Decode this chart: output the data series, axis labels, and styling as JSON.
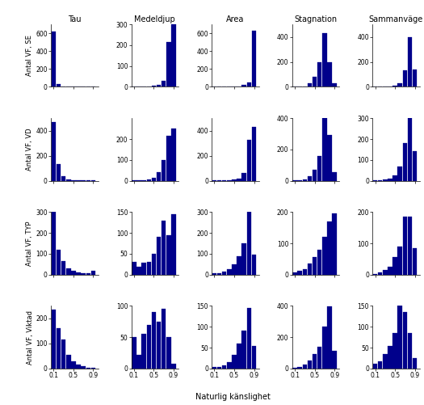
{
  "col_titles": [
    "Tau",
    "Medeldjup",
    "Area",
    "Stagnation",
    "Sammanväge"
  ],
  "row_labels": [
    "Antal VF, SE",
    "Antal VF, VD",
    "Antal VF, TYP",
    "Antal VF, Viktad"
  ],
  "bar_color": "#00008B",
  "xlabel": "Naturlig känslighet",
  "bin_centers": [
    0.1,
    0.2,
    0.3,
    0.4,
    0.5,
    0.6,
    0.7,
    0.8,
    0.9
  ],
  "bar_width": 0.09,
  "data": {
    "row0": {
      "Tau": [
        620,
        30,
        5,
        3,
        2,
        1,
        1,
        1,
        2
      ],
      "Medeldjup": [
        1,
        1,
        2,
        3,
        5,
        10,
        30,
        215,
        300
      ],
      "Area": [
        1,
        1,
        1,
        2,
        3,
        5,
        20,
        50,
        630
      ],
      "Stagnation": [
        2,
        2,
        3,
        30,
        80,
        200,
        430,
        200,
        30
      ],
      "Sammanvage": [
        2,
        2,
        3,
        5,
        10,
        30,
        130,
        400,
        140
      ]
    },
    "row1": {
      "Tau": [
        470,
        130,
        35,
        12,
        6,
        4,
        3,
        2,
        2
      ],
      "Medeldjup": [
        2,
        3,
        4,
        7,
        15,
        40,
        100,
        215,
        250
      ],
      "Area": [
        1,
        2,
        3,
        5,
        10,
        20,
        60,
        330,
        430
      ],
      "Stagnation": [
        3,
        5,
        10,
        30,
        70,
        160,
        400,
        290,
        55
      ],
      "Sammanvage": [
        3,
        3,
        5,
        10,
        25,
        70,
        180,
        310,
        140
      ]
    },
    "row2": {
      "Tau": [
        330,
        120,
        65,
        30,
        18,
        12,
        8,
        8,
        20
      ],
      "Medeldjup": [
        30,
        18,
        28,
        30,
        50,
        90,
        130,
        95,
        145
      ],
      "Area": [
        5,
        8,
        15,
        28,
        50,
        90,
        150,
        300,
        95
      ],
      "Stagnation": [
        8,
        12,
        18,
        35,
        55,
        80,
        120,
        170,
        195
      ],
      "Sammanvage": [
        3,
        8,
        15,
        25,
        55,
        90,
        185,
        185,
        85
      ]
    },
    "row3": {
      "Tau": [
        235,
        160,
        115,
        55,
        30,
        15,
        8,
        4,
        3
      ],
      "Medeldjup": [
        50,
        22,
        55,
        70,
        90,
        75,
        95,
        50,
        8
      ],
      "Area": [
        3,
        3,
        8,
        15,
        32,
        60,
        90,
        145,
        55
      ],
      "Stagnation": [
        3,
        8,
        25,
        50,
        90,
        140,
        270,
        395,
        115
      ],
      "Sammanvage": [
        12,
        18,
        35,
        55,
        85,
        150,
        135,
        85,
        25
      ]
    }
  },
  "ylims": {
    "row0": {
      "Tau": 700,
      "Medeldjup": 300,
      "Area": 700,
      "Stagnation": 500,
      "Sammanvage": 500
    },
    "row1": {
      "Tau": 500,
      "Medeldjup": 300,
      "Area": 500,
      "Stagnation": 400,
      "Sammanvage": 300
    },
    "row2": {
      "Tau": 300,
      "Medeldjup": 150,
      "Area": 300,
      "Stagnation": 200,
      "Sammanvage": 200
    },
    "row3": {
      "Tau": 250,
      "Medeldjup": 100,
      "Area": 150,
      "Stagnation": 400,
      "Sammanvage": 150
    }
  },
  "yticks": {
    "row0": {
      "Tau": [
        0,
        200,
        400,
        600
      ],
      "Medeldjup": [
        0,
        100,
        200,
        300
      ],
      "Area": [
        0,
        200,
        400,
        600
      ],
      "Stagnation": [
        0,
        200,
        400
      ],
      "Sammanvage": [
        0,
        200,
        400
      ]
    },
    "row1": {
      "Tau": [
        0,
        200,
        400
      ],
      "Medeldjup": [
        0,
        100,
        200
      ],
      "Area": [
        0,
        200,
        400
      ],
      "Stagnation": [
        0,
        200,
        400
      ],
      "Sammanvage": [
        0,
        100,
        200,
        300
      ]
    },
    "row2": {
      "Tau": [
        0,
        100,
        200,
        300
      ],
      "Medeldjup": [
        0,
        50,
        100,
        150
      ],
      "Area": [
        0,
        100,
        200,
        300
      ],
      "Stagnation": [
        0,
        100,
        200
      ],
      "Sammanvage": [
        0,
        100,
        200
      ]
    },
    "row3": {
      "Tau": [
        0,
        100,
        200
      ],
      "Medeldjup": [
        0,
        50,
        100
      ],
      "Area": [
        0,
        50,
        100,
        150
      ],
      "Stagnation": [
        0,
        200,
        400
      ],
      "Sammanvage": [
        0,
        50,
        100,
        150
      ]
    }
  }
}
